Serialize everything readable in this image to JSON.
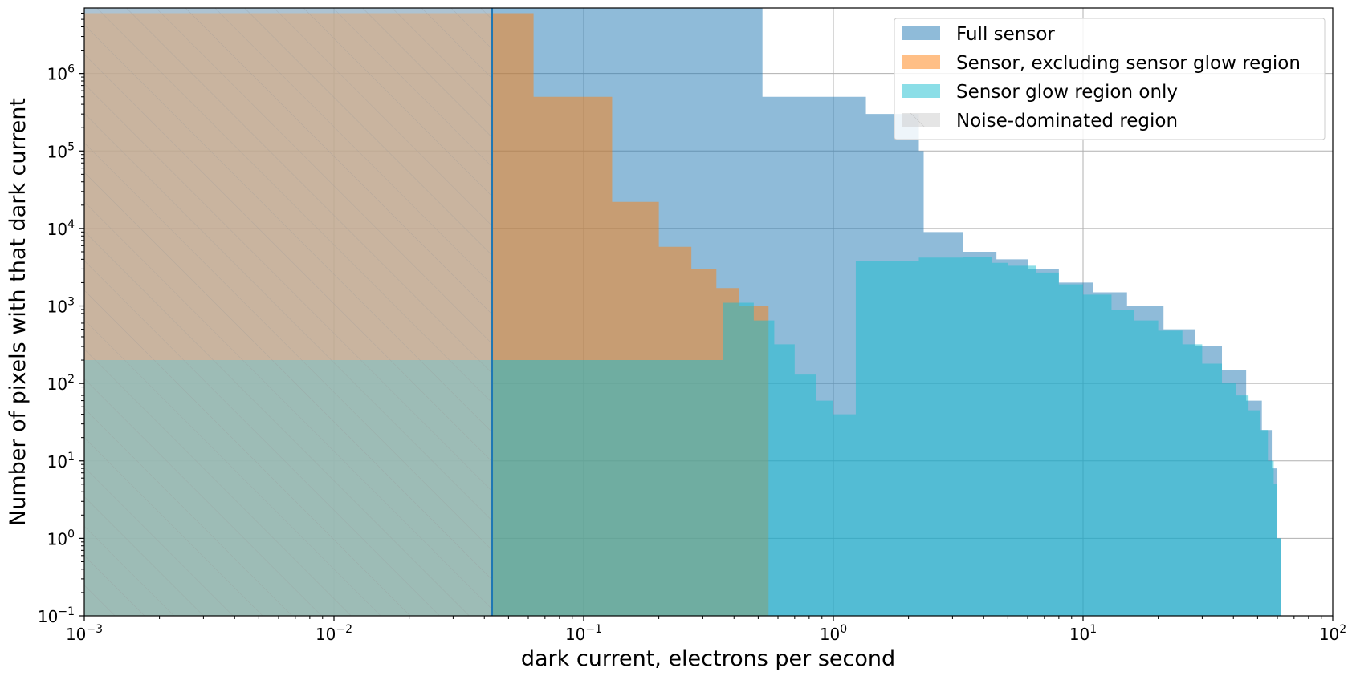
{
  "chart_data": {
    "type": "histogram",
    "xlabel": "dark current, electrons per second",
    "ylabel": "Number of pixels with that dark current",
    "x_scale": "log",
    "y_scale": "log",
    "xlim": [
      0.001,
      100
    ],
    "ylim": [
      0.1,
      7000000
    ],
    "grid": true,
    "legend_position": "top-right",
    "x_ticks": [
      {
        "value": 0.001,
        "base": "10",
        "exp": "−3"
      },
      {
        "value": 0.01,
        "base": "10",
        "exp": "−2"
      },
      {
        "value": 0.1,
        "base": "10",
        "exp": "−1"
      },
      {
        "value": 1,
        "base": "10",
        "exp": "0"
      },
      {
        "value": 10,
        "base": "10",
        "exp": "1"
      },
      {
        "value": 100,
        "base": "10",
        "exp": "2"
      }
    ],
    "y_ticks": [
      {
        "value": 0.1,
        "base": "10",
        "exp": "−1"
      },
      {
        "value": 1,
        "base": "10",
        "exp": "0"
      },
      {
        "value": 10,
        "base": "10",
        "exp": "1"
      },
      {
        "value": 100,
        "base": "10",
        "exp": "2"
      },
      {
        "value": 1000,
        "base": "10",
        "exp": "3"
      },
      {
        "value": 10000,
        "base": "10",
        "exp": "4"
      },
      {
        "value": 100000,
        "base": "10",
        "exp": "5"
      },
      {
        "value": 1000000,
        "base": "10",
        "exp": "6"
      }
    ],
    "noise_threshold": 0.043,
    "threshold_line_color": "#1f77b4",
    "series": [
      {
        "name": "Full sensor",
        "color": "#1f77b4",
        "opacity": 0.5,
        "steps": [
          {
            "x": 0.001,
            "y": 7000000
          },
          {
            "x": 0.52,
            "y": 500000
          },
          {
            "x": 1.35,
            "y": 300000
          },
          {
            "x": 2.2,
            "y": 100000
          },
          {
            "x": 2.3,
            "y": 9000
          },
          {
            "x": 3.3,
            "y": 5000
          },
          {
            "x": 4.5,
            "y": 4000
          },
          {
            "x": 6.0,
            "y": 3000
          },
          {
            "x": 8.0,
            "y": 2000
          },
          {
            "x": 11,
            "y": 1500
          },
          {
            "x": 15,
            "y": 1000
          },
          {
            "x": 21,
            "y": 500
          },
          {
            "x": 28,
            "y": 300
          },
          {
            "x": 36,
            "y": 150
          },
          {
            "x": 45,
            "y": 60
          },
          {
            "x": 52,
            "y": 25
          },
          {
            "x": 57,
            "y": 8
          },
          {
            "x": 60,
            "y": 1
          },
          {
            "x": 62,
            "y": 0.1
          }
        ]
      },
      {
        "name": "Sensor, excluding sensor glow region",
        "color": "#ff7f0e",
        "opacity": 0.5,
        "steps": [
          {
            "x": 0.001,
            "y": 6000000
          },
          {
            "x": 0.063,
            "y": 500000
          },
          {
            "x": 0.13,
            "y": 22000
          },
          {
            "x": 0.2,
            "y": 5800
          },
          {
            "x": 0.27,
            "y": 3000
          },
          {
            "x": 0.34,
            "y": 1700
          },
          {
            "x": 0.42,
            "y": 1000
          },
          {
            "x": 0.55,
            "y": 0.1
          }
        ]
      },
      {
        "name": "Sensor glow region only",
        "color": "#17becf",
        "opacity": 0.5,
        "steps": [
          {
            "x": 0.001,
            "y": 200
          },
          {
            "x": 0.36,
            "y": 1100
          },
          {
            "x": 0.48,
            "y": 650
          },
          {
            "x": 0.58,
            "y": 320
          },
          {
            "x": 0.7,
            "y": 130
          },
          {
            "x": 0.85,
            "y": 60
          },
          {
            "x": 1.0,
            "y": 40
          },
          {
            "x": 1.23,
            "y": 3800
          },
          {
            "x": 2.2,
            "y": 4200
          },
          {
            "x": 3.3,
            "y": 4300
          },
          {
            "x": 4.3,
            "y": 3600
          },
          {
            "x": 5.0,
            "y": 3300
          },
          {
            "x": 6.5,
            "y": 2700
          },
          {
            "x": 8.0,
            "y": 1900
          },
          {
            "x": 10,
            "y": 1400
          },
          {
            "x": 13,
            "y": 900
          },
          {
            "x": 16,
            "y": 650
          },
          {
            "x": 20,
            "y": 480
          },
          {
            "x": 25,
            "y": 320
          },
          {
            "x": 30,
            "y": 180
          },
          {
            "x": 36,
            "y": 100
          },
          {
            "x": 41,
            "y": 70
          },
          {
            "x": 46,
            "y": 45
          },
          {
            "x": 51,
            "y": 25
          },
          {
            "x": 55,
            "y": 10
          },
          {
            "x": 58,
            "y": 5
          },
          {
            "x": 60,
            "y": 1
          },
          {
            "x": 62,
            "y": 0.1
          }
        ]
      },
      {
        "name": "Noise-dominated region",
        "color": "#cccccc",
        "hatch": true
      }
    ]
  }
}
